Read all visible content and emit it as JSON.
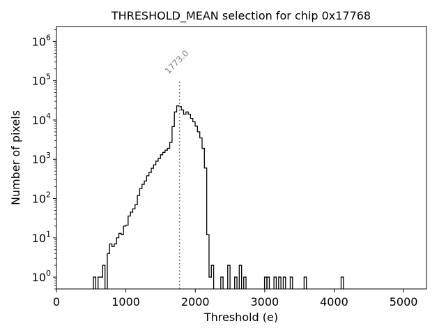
{
  "chart_data": {
    "type": "histogram",
    "title": "THRESHOLD_MEAN selection for chip 0x17768",
    "xlabel": "Threshold (e)",
    "ylabel": "Number of pixels",
    "xlim": [
      0,
      5330
    ],
    "ylim": [
      0.5,
      2400000
    ],
    "yscale": "log",
    "grid": false,
    "line_color": "#000000",
    "marker_color": "#808080",
    "x_ticks": [
      {
        "value": 0,
        "label": "0"
      },
      {
        "value": 1000,
        "label": "1000"
      },
      {
        "value": 2000,
        "label": "2000"
      },
      {
        "value": 3000,
        "label": "3000"
      },
      {
        "value": 4000,
        "label": "4000"
      },
      {
        "value": 5000,
        "label": "5000"
      }
    ],
    "y_ticks": [
      {
        "value": 1,
        "base": "10",
        "exp": "0"
      },
      {
        "value": 10,
        "base": "10",
        "exp": "1"
      },
      {
        "value": 100,
        "base": "10",
        "exp": "2"
      },
      {
        "value": 1000,
        "base": "10",
        "exp": "3"
      },
      {
        "value": 10000,
        "base": "10",
        "exp": "4"
      },
      {
        "value": 100000,
        "base": "10",
        "exp": "5"
      },
      {
        "value": 1000000,
        "base": "10",
        "exp": "6"
      }
    ],
    "mean_line": {
      "x": 1773.0,
      "y_top": 100000,
      "label": "1773.0"
    },
    "bin_edges_start": 0,
    "bin_width": 33.3,
    "counts": [
      0,
      0,
      0,
      0,
      0,
      0,
      0,
      0,
      0,
      0,
      0,
      0,
      0,
      0,
      0,
      0,
      1,
      0,
      1,
      1,
      2,
      0,
      4,
      7,
      6,
      7,
      10,
      13,
      12,
      20,
      21,
      36,
      45,
      55,
      70,
      120,
      180,
      230,
      280,
      380,
      460,
      590,
      720,
      900,
      1050,
      1300,
      1500,
      1700,
      1900,
      2700,
      6800,
      16000,
      23000,
      22000,
      18000,
      14000,
      16000,
      14000,
      11000,
      9000,
      7000,
      5000,
      3500,
      1900,
      600,
      12,
      1,
      2,
      0,
      0,
      0,
      0,
      0,
      0,
      0,
      0,
      0,
      0,
      0,
      0,
      0,
      1,
      0,
      0,
      0,
      0,
      0,
      0,
      0,
      0,
      1,
      0,
      0,
      0,
      0,
      0,
      0,
      0,
      0,
      0,
      0,
      0,
      0,
      0,
      0,
      0,
      0,
      0,
      0,
      0,
      0,
      0,
      0,
      0,
      0,
      0,
      0,
      0,
      0,
      0,
      0,
      0,
      0,
      0,
      0,
      0,
      0,
      0,
      0,
      0
    ],
    "outliers": [
      {
        "x0": 2367,
        "count": 1
      },
      {
        "x0": 2467,
        "count": 2
      },
      {
        "x0": 2567,
        "count": 1
      },
      {
        "x0": 2633,
        "count": 2
      },
      {
        "x0": 3033,
        "count": 1
      },
      {
        "x0": 3133,
        "count": 1
      },
      {
        "x0": 3200,
        "count": 1
      },
      {
        "x0": 3267,
        "count": 1
      },
      {
        "x0": 3367,
        "count": 1
      },
      {
        "x0": 3567,
        "count": 1
      },
      {
        "x0": 4100,
        "count": 1
      }
    ]
  }
}
